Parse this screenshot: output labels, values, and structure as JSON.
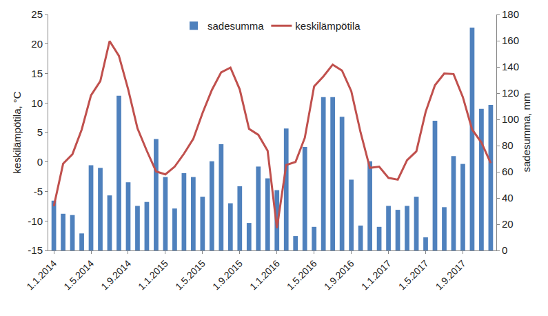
{
  "chart_data": {
    "type": "combo",
    "categories": [
      "1.1.2014",
      null,
      null,
      null,
      "1.5.2014",
      null,
      null,
      null,
      "1.9.2014",
      null,
      null,
      null,
      "1.1.2015",
      null,
      null,
      null,
      "1.5.2015",
      null,
      null,
      null,
      "1.9.2015",
      null,
      null,
      null,
      "1.1.2016",
      null,
      null,
      null,
      "1.5.2016",
      null,
      null,
      null,
      "1.9.2016",
      null,
      null,
      null,
      "1.1.2017",
      null,
      null,
      null,
      "1.5.2017",
      null,
      null,
      null,
      "1.9.2017",
      null,
      null,
      null
    ],
    "series": [
      {
        "name": "sadesumma",
        "type": "bar",
        "color": "#4f81bd",
        "values": [
          38,
          28,
          27,
          13,
          65,
          63,
          42,
          118,
          52,
          34,
          37,
          85,
          56,
          32,
          59,
          56,
          41,
          68,
          81,
          36,
          49,
          21,
          64,
          55,
          46,
          93,
          11,
          79,
          18,
          117,
          117,
          102,
          54,
          19,
          68,
          18,
          34,
          31,
          34,
          41,
          10,
          99,
          33,
          72,
          66,
          170,
          108,
          111
        ]
      },
      {
        "name": "keskilämpötila",
        "type": "line",
        "color": "#c0504d",
        "axis": "y2",
        "values": [
          -7.5,
          -0.3,
          1.3,
          5.5,
          11.3,
          13.7,
          20.5,
          18.0,
          12.3,
          5.7,
          1.9,
          -1.6,
          -2.1,
          -0.8,
          1.4,
          3.9,
          8.3,
          12.2,
          15.2,
          16.0,
          12.3,
          5.6,
          4.6,
          1.9,
          -11.2,
          -0.5,
          0.0,
          4.1,
          12.8,
          14.5,
          16.5,
          15.5,
          12.0,
          5.0,
          -1.0,
          -0.8,
          -2.7,
          -3.0,
          0.3,
          1.8,
          8.5,
          13.0,
          15.0,
          14.9,
          11.0,
          5.5,
          3.3,
          -0.2
        ]
      }
    ],
    "ylabel": "sadesumma, mm",
    "ylim": [
      0,
      180
    ],
    "yticks": [
      0,
      20,
      40,
      60,
      80,
      100,
      120,
      140,
      160,
      180
    ],
    "y2label": "keskilämpötila, °C",
    "y2lim": [
      -15,
      25
    ],
    "y2ticks": [
      -15,
      -10,
      -5,
      0,
      5,
      10,
      15,
      20,
      25
    ],
    "legend": "top",
    "grid": false
  }
}
